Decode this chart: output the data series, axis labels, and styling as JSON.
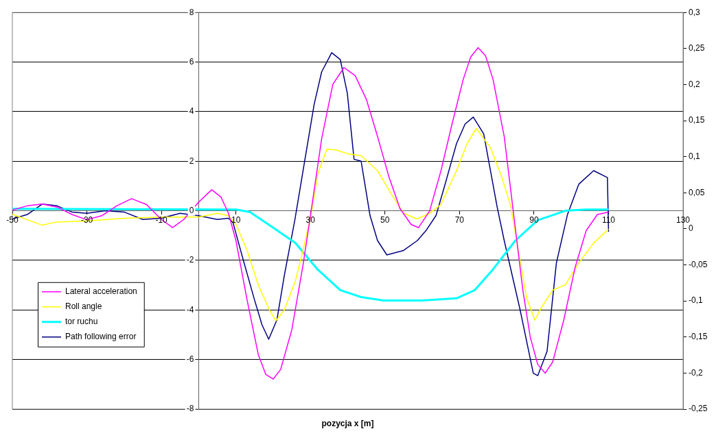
{
  "chart_data": {
    "type": "line",
    "xlabel": "pozycja x [m]",
    "xlim": [
      -50,
      130
    ],
    "xticks": [
      -50,
      -30,
      -10,
      10,
      30,
      50,
      70,
      90,
      110,
      130
    ],
    "ylim": [
      -8,
      8
    ],
    "yticks": [
      -8,
      -6,
      -4,
      -2,
      0,
      2,
      4,
      6,
      8
    ],
    "y2lim": [
      -0.25,
      0.3
    ],
    "y2ticks": [
      {
        "value": -0.25,
        "label": "-0,25"
      },
      {
        "value": -0.2,
        "label": "-0,2"
      },
      {
        "value": -0.15,
        "label": "-0,15"
      },
      {
        "value": -0.1,
        "label": "-0,1"
      },
      {
        "value": -0.05,
        "label": "-0,05"
      },
      {
        "value": 0,
        "label": "0"
      },
      {
        "value": 0.05,
        "label": "0,05"
      },
      {
        "value": 0.1,
        "label": "0,1"
      },
      {
        "value": 0.15,
        "label": "0,15"
      },
      {
        "value": 0.2,
        "label": "0,2"
      },
      {
        "value": 0.25,
        "label": "0,25"
      },
      {
        "value": 0.3,
        "label": "0,3"
      }
    ],
    "grid": "y",
    "legend": "left",
    "marker": "none",
    "line_style": "solid",
    "series": [
      {
        "name": "Lateral acceleration",
        "color": "#ff00ff",
        "x": [
          -50,
          -46,
          -42,
          -38,
          -34,
          -30,
          -26,
          -22,
          -18,
          -14,
          -10,
          -7,
          -4,
          0,
          3.5,
          6,
          8,
          10,
          13,
          16,
          18,
          20,
          22,
          25,
          28,
          30,
          33,
          36,
          39,
          42,
          45,
          48,
          51,
          54,
          57,
          59,
          62,
          65,
          68,
          71,
          73,
          75,
          77,
          79,
          82,
          84.5,
          87,
          89,
          91,
          93,
          95,
          98,
          101,
          104,
          107,
          110
        ],
        "values": [
          0.03,
          0.2,
          0.27,
          0.15,
          -0.15,
          -0.36,
          -0.2,
          0.2,
          0.49,
          0.25,
          -0.35,
          -0.68,
          -0.35,
          0.35,
          0.85,
          0.55,
          -0.1,
          -1.2,
          -3.6,
          -5.8,
          -6.6,
          -6.79,
          -6.4,
          -4.8,
          -2.2,
          -0.2,
          2.9,
          5.1,
          5.78,
          5.45,
          4.5,
          3.0,
          1.4,
          0.1,
          -0.55,
          -0.68,
          0.0,
          1.6,
          3.5,
          5.3,
          6.2,
          6.58,
          6.25,
          5.3,
          3.0,
          -0.1,
          -3.2,
          -5.1,
          -6.2,
          -6.55,
          -6.1,
          -4.4,
          -2.3,
          -0.8,
          -0.15,
          -0.05
        ]
      },
      {
        "name": "Roll angle",
        "color": "#ffff00",
        "x": [
          -50,
          -42,
          -38,
          -30,
          -20,
          -10,
          0,
          5,
          8,
          10,
          13,
          16,
          19,
          20.7,
          23,
          26,
          28,
          30.2,
          32,
          34.4,
          37,
          40,
          43.6,
          48,
          52,
          55,
          58.6,
          62,
          65,
          69.2,
          72,
          74.5,
          78.3,
          81.4,
          83.8,
          86,
          88,
          90.2,
          92,
          95,
          98.4,
          102,
          106,
          110
        ],
        "values": [
          -0.14,
          -0.58,
          -0.45,
          -0.41,
          -0.3,
          -0.25,
          -0.25,
          -0.1,
          -0.2,
          -0.55,
          -1.6,
          -3.0,
          -4.0,
          -4.44,
          -4.0,
          -2.8,
          -1.6,
          -0.15,
          1.5,
          2.49,
          2.45,
          2.3,
          2.22,
          1.62,
          0.6,
          -0.1,
          -0.33,
          -0.1,
          0.25,
          1.62,
          2.7,
          3.32,
          2.55,
          1.34,
          0.16,
          -1.8,
          -3.5,
          -4.41,
          -3.9,
          -3.2,
          -2.99,
          -2.11,
          -1.3,
          -0.74
        ]
      },
      {
        "name": "tor ruchu",
        "color": "#00ffff",
        "x": [
          -50,
          10,
          13.8,
          19.8,
          25.9,
          32,
          38,
          43.6,
          49.6,
          60,
          69.2,
          74.1,
          78.9,
          85,
          91,
          98.4,
          104,
          110
        ],
        "values": [
          0.08,
          0.05,
          -0.05,
          -0.66,
          -1.29,
          -2.38,
          -3.2,
          -3.48,
          -3.62,
          -3.62,
          -3.53,
          -3.2,
          -2.38,
          -1.2,
          -0.38,
          0.0,
          0.05,
          0.05
        ]
      },
      {
        "name": "Path following error",
        "color": "#000080",
        "x": [
          -50,
          -46,
          -42,
          -38,
          -34,
          -30,
          -25,
          -20,
          -15,
          -10,
          -5,
          0,
          5,
          8,
          9.2,
          12,
          15,
          17,
          18.8,
          21,
          23,
          25.8,
          28,
          31,
          33,
          35.7,
          38,
          39.9,
          41.7,
          43.6,
          46,
          48,
          50.5,
          55,
          58.7,
          61,
          63.7,
          66,
          69.2,
          71.5,
          73.7,
          76.5,
          80.1,
          82,
          86.2,
          89.8,
          91,
          93.5,
          96,
          99,
          102,
          106,
          109.7,
          110
        ],
        "values": [
          -0.33,
          -0.15,
          0.27,
          0.2,
          -0.05,
          -0.1,
          0,
          -0.05,
          -0.35,
          -0.3,
          -0.1,
          -0.2,
          -0.35,
          -0.3,
          -0.47,
          -2.0,
          -3.6,
          -4.6,
          -5.18,
          -4.4,
          -2.6,
          -0.38,
          1.6,
          4.3,
          5.6,
          6.38,
          6.1,
          4.74,
          2.08,
          2.0,
          -0.2,
          -1.2,
          -1.78,
          -1.6,
          -1.2,
          -0.8,
          -0.19,
          1.0,
          2.71,
          3.5,
          3.78,
          3.1,
          0.16,
          -1.2,
          -3.95,
          -6.55,
          -6.65,
          -5.67,
          -2.11,
          -0.14,
          1.07,
          1.62,
          1.34,
          -0.85
        ]
      }
    ]
  }
}
